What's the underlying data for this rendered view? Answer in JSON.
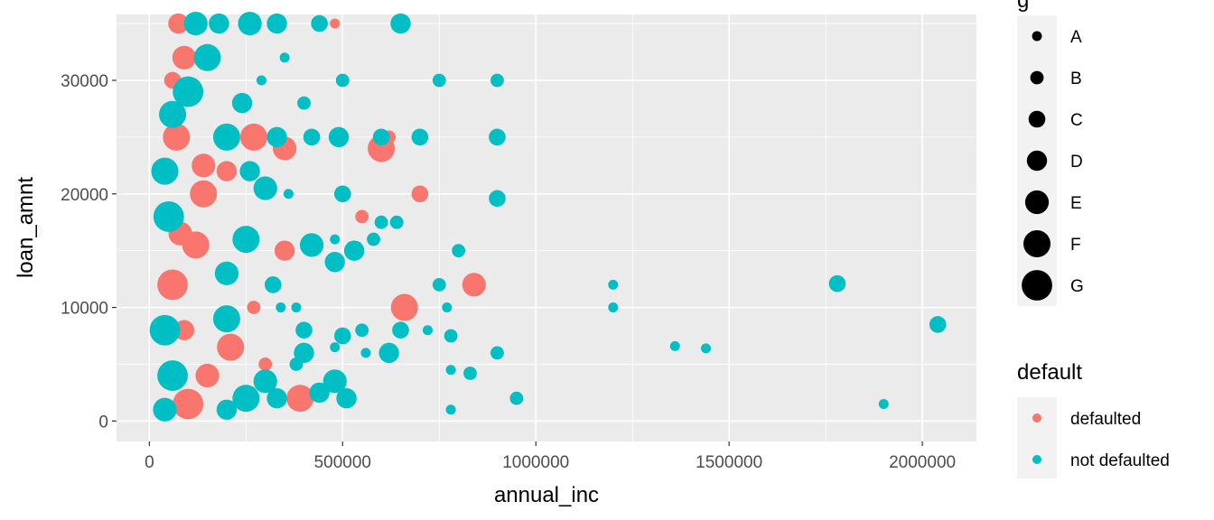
{
  "chart_data": {
    "type": "scatter",
    "xlabel": "annual_inc",
    "ylabel": "loan_amnt",
    "xlim": [
      -85000,
      2140000
    ],
    "ylim": [
      -1800,
      35800
    ],
    "x_ticks": [
      0,
      500000,
      1000000,
      1500000,
      2000000
    ],
    "x_tick_labels": [
      "0",
      "500000",
      "1000000",
      "1500000",
      "2000000"
    ],
    "y_ticks": [
      0,
      10000,
      20000,
      30000
    ],
    "y_tick_labels": [
      "0",
      "10000",
      "20000",
      "30000"
    ],
    "grid": true,
    "size_legend": {
      "title": "g",
      "levels": [
        "A",
        "B",
        "C",
        "D",
        "E",
        "F",
        "G"
      ]
    },
    "color_legend": {
      "title": "default",
      "entries": [
        {
          "label": "defaulted",
          "color": "#F8766D"
        },
        {
          "label": "not defaulted",
          "color": "#00BFC4"
        }
      ]
    },
    "series": [
      {
        "name": "defaulted",
        "color": "#F8766D",
        "points": [
          {
            "x": 75000,
            "y": 35000,
            "g": "D"
          },
          {
            "x": 480000,
            "y": 35000,
            "g": "A"
          },
          {
            "x": 90000,
            "y": 32000,
            "g": "E"
          },
          {
            "x": 60000,
            "y": 30000,
            "g": "C"
          },
          {
            "x": 70000,
            "y": 25000,
            "g": "F"
          },
          {
            "x": 270000,
            "y": 25000,
            "g": "F"
          },
          {
            "x": 620000,
            "y": 25000,
            "g": "B"
          },
          {
            "x": 350000,
            "y": 24000,
            "g": "E"
          },
          {
            "x": 600000,
            "y": 24000,
            "g": "F"
          },
          {
            "x": 140000,
            "y": 22500,
            "g": "E"
          },
          {
            "x": 200000,
            "y": 22000,
            "g": "D"
          },
          {
            "x": 140000,
            "y": 20000,
            "g": "F"
          },
          {
            "x": 700000,
            "y": 20000,
            "g": "C"
          },
          {
            "x": 550000,
            "y": 18000,
            "g": "B"
          },
          {
            "x": 80000,
            "y": 16500,
            "g": "E"
          },
          {
            "x": 120000,
            "y": 15500,
            "g": "F"
          },
          {
            "x": 350000,
            "y": 15000,
            "g": "D"
          },
          {
            "x": 840000,
            "y": 12000,
            "g": "E"
          },
          {
            "x": 60000,
            "y": 12000,
            "g": "G"
          },
          {
            "x": 660000,
            "y": 10000,
            "g": "F"
          },
          {
            "x": 270000,
            "y": 10000,
            "g": "B"
          },
          {
            "x": 90000,
            "y": 8000,
            "g": "D"
          },
          {
            "x": 210000,
            "y": 6500,
            "g": "F"
          },
          {
            "x": 300000,
            "y": 5000,
            "g": "B"
          },
          {
            "x": 150000,
            "y": 4000,
            "g": "E"
          },
          {
            "x": 390000,
            "y": 2000,
            "g": "F"
          },
          {
            "x": 100000,
            "y": 1500,
            "g": "G"
          }
        ]
      },
      {
        "name": "not defaulted",
        "color": "#00BFC4",
        "points": [
          {
            "x": 120000,
            "y": 35000,
            "g": "E"
          },
          {
            "x": 180000,
            "y": 35000,
            "g": "D"
          },
          {
            "x": 260000,
            "y": 35000,
            "g": "E"
          },
          {
            "x": 330000,
            "y": 35000,
            "g": "D"
          },
          {
            "x": 440000,
            "y": 35000,
            "g": "C"
          },
          {
            "x": 650000,
            "y": 35000,
            "g": "D"
          },
          {
            "x": 350000,
            "y": 32000,
            "g": "A"
          },
          {
            "x": 150000,
            "y": 32000,
            "g": "F"
          },
          {
            "x": 500000,
            "y": 30000,
            "g": "B"
          },
          {
            "x": 750000,
            "y": 30000,
            "g": "B"
          },
          {
            "x": 900000,
            "y": 30000,
            "g": "B"
          },
          {
            "x": 290000,
            "y": 30000,
            "g": "A"
          },
          {
            "x": 100000,
            "y": 29000,
            "g": "G"
          },
          {
            "x": 400000,
            "y": 28000,
            "g": "B"
          },
          {
            "x": 240000,
            "y": 28000,
            "g": "D"
          },
          {
            "x": 330000,
            "y": 25000,
            "g": "D"
          },
          {
            "x": 420000,
            "y": 25000,
            "g": "C"
          },
          {
            "x": 490000,
            "y": 25000,
            "g": "D"
          },
          {
            "x": 600000,
            "y": 25000,
            "g": "C"
          },
          {
            "x": 700000,
            "y": 25000,
            "g": "C"
          },
          {
            "x": 900000,
            "y": 25000,
            "g": "C"
          },
          {
            "x": 200000,
            "y": 25000,
            "g": "F"
          },
          {
            "x": 260000,
            "y": 22000,
            "g": "D"
          },
          {
            "x": 300000,
            "y": 20500,
            "g": "E"
          },
          {
            "x": 360000,
            "y": 20000,
            "g": "A"
          },
          {
            "x": 500000,
            "y": 20000,
            "g": "C"
          },
          {
            "x": 900000,
            "y": 19600,
            "g": "C"
          },
          {
            "x": 600000,
            "y": 17500,
            "g": "B"
          },
          {
            "x": 640000,
            "y": 17500,
            "g": "B"
          },
          {
            "x": 580000,
            "y": 16000,
            "g": "B"
          },
          {
            "x": 480000,
            "y": 16000,
            "g": "A"
          },
          {
            "x": 420000,
            "y": 15500,
            "g": "E"
          },
          {
            "x": 530000,
            "y": 15000,
            "g": "D"
          },
          {
            "x": 800000,
            "y": 15000,
            "g": "B"
          },
          {
            "x": 480000,
            "y": 14000,
            "g": "D"
          },
          {
            "x": 250000,
            "y": 16000,
            "g": "F"
          },
          {
            "x": 200000,
            "y": 13000,
            "g": "E"
          },
          {
            "x": 750000,
            "y": 12000,
            "g": "B"
          },
          {
            "x": 1200000,
            "y": 12000,
            "g": "A"
          },
          {
            "x": 1780000,
            "y": 12100,
            "g": "C"
          },
          {
            "x": 320000,
            "y": 12000,
            "g": "C"
          },
          {
            "x": 1200000,
            "y": 10000,
            "g": "A"
          },
          {
            "x": 770000,
            "y": 10000,
            "g": "A"
          },
          {
            "x": 340000,
            "y": 10000,
            "g": "A"
          },
          {
            "x": 380000,
            "y": 10000,
            "g": "A"
          },
          {
            "x": 200000,
            "y": 9000,
            "g": "F"
          },
          {
            "x": 400000,
            "y": 8000,
            "g": "C"
          },
          {
            "x": 500000,
            "y": 7500,
            "g": "C"
          },
          {
            "x": 550000,
            "y": 8000,
            "g": "B"
          },
          {
            "x": 650000,
            "y": 8000,
            "g": "C"
          },
          {
            "x": 720000,
            "y": 8000,
            "g": "A"
          },
          {
            "x": 2040000,
            "y": 8500,
            "g": "C"
          },
          {
            "x": 780000,
            "y": 7500,
            "g": "B"
          },
          {
            "x": 1360000,
            "y": 6600,
            "g": "A"
          },
          {
            "x": 1440000,
            "y": 6400,
            "g": "A"
          },
          {
            "x": 480000,
            "y": 6500,
            "g": "A"
          },
          {
            "x": 620000,
            "y": 6000,
            "g": "D"
          },
          {
            "x": 900000,
            "y": 6000,
            "g": "B"
          },
          {
            "x": 560000,
            "y": 6000,
            "g": "A"
          },
          {
            "x": 400000,
            "y": 6000,
            "g": "D"
          },
          {
            "x": 380000,
            "y": 5000,
            "g": "B"
          },
          {
            "x": 780000,
            "y": 4500,
            "g": "A"
          },
          {
            "x": 830000,
            "y": 4200,
            "g": "B"
          },
          {
            "x": 480000,
            "y": 3500,
            "g": "E"
          },
          {
            "x": 300000,
            "y": 3500,
            "g": "E"
          },
          {
            "x": 440000,
            "y": 2500,
            "g": "D"
          },
          {
            "x": 510000,
            "y": 2000,
            "g": "D"
          },
          {
            "x": 950000,
            "y": 2000,
            "g": "B"
          },
          {
            "x": 250000,
            "y": 2000,
            "g": "F"
          },
          {
            "x": 330000,
            "y": 2000,
            "g": "D"
          },
          {
            "x": 780000,
            "y": 1000,
            "g": "A"
          },
          {
            "x": 1900000,
            "y": 1500,
            "g": "A"
          },
          {
            "x": 200000,
            "y": 1000,
            "g": "D"
          },
          {
            "x": 40000,
            "y": 1000,
            "g": "E"
          },
          {
            "x": 60000,
            "y": 4000,
            "g": "G"
          },
          {
            "x": 40000,
            "y": 8000,
            "g": "G"
          },
          {
            "x": 50000,
            "y": 18000,
            "g": "G"
          },
          {
            "x": 40000,
            "y": 22000,
            "g": "F"
          },
          {
            "x": 60000,
            "y": 27000,
            "g": "F"
          }
        ]
      }
    ]
  }
}
